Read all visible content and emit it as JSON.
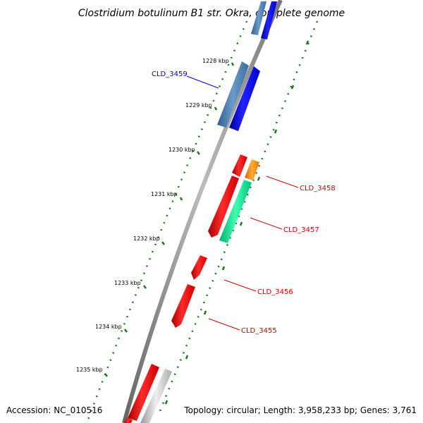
{
  "title": "Clostridium botulinum B1 str. Okra, complete genome",
  "footer": {
    "accession": "Accession: NC_010516",
    "summary": "Topology: circular; Length: 3,958,233 bp; Genes: 3,761"
  },
  "ticks": [
    "1228 kbp",
    "1229 kbp",
    "1230 kbp",
    "1231 kbp",
    "1232 kbp",
    "1233 kbp",
    "1234 kbp",
    "1235 kbp"
  ],
  "genes": [
    {
      "label": "CLD_3459",
      "color": "#0000cc"
    },
    {
      "label": "CLD_3458",
      "color": "#cc0000"
    },
    {
      "label": "CLD_3457",
      "color": "#cc0000"
    },
    {
      "label": "CLD_3456",
      "color": "#cc0000"
    },
    {
      "label": "CLD_3455",
      "color": "#cc0000"
    }
  ],
  "colors": {
    "backbone": "#8a8a8a",
    "forward_strand": "#0000ee",
    "reverse_strand": "#ee0000",
    "steelblue_feature": "#4a7fb5",
    "orange_feature": "#ff8c00",
    "green_feature": "#00e08a",
    "grey_feature": "#bbbbbb",
    "tick_color": "#1a7a1a"
  }
}
